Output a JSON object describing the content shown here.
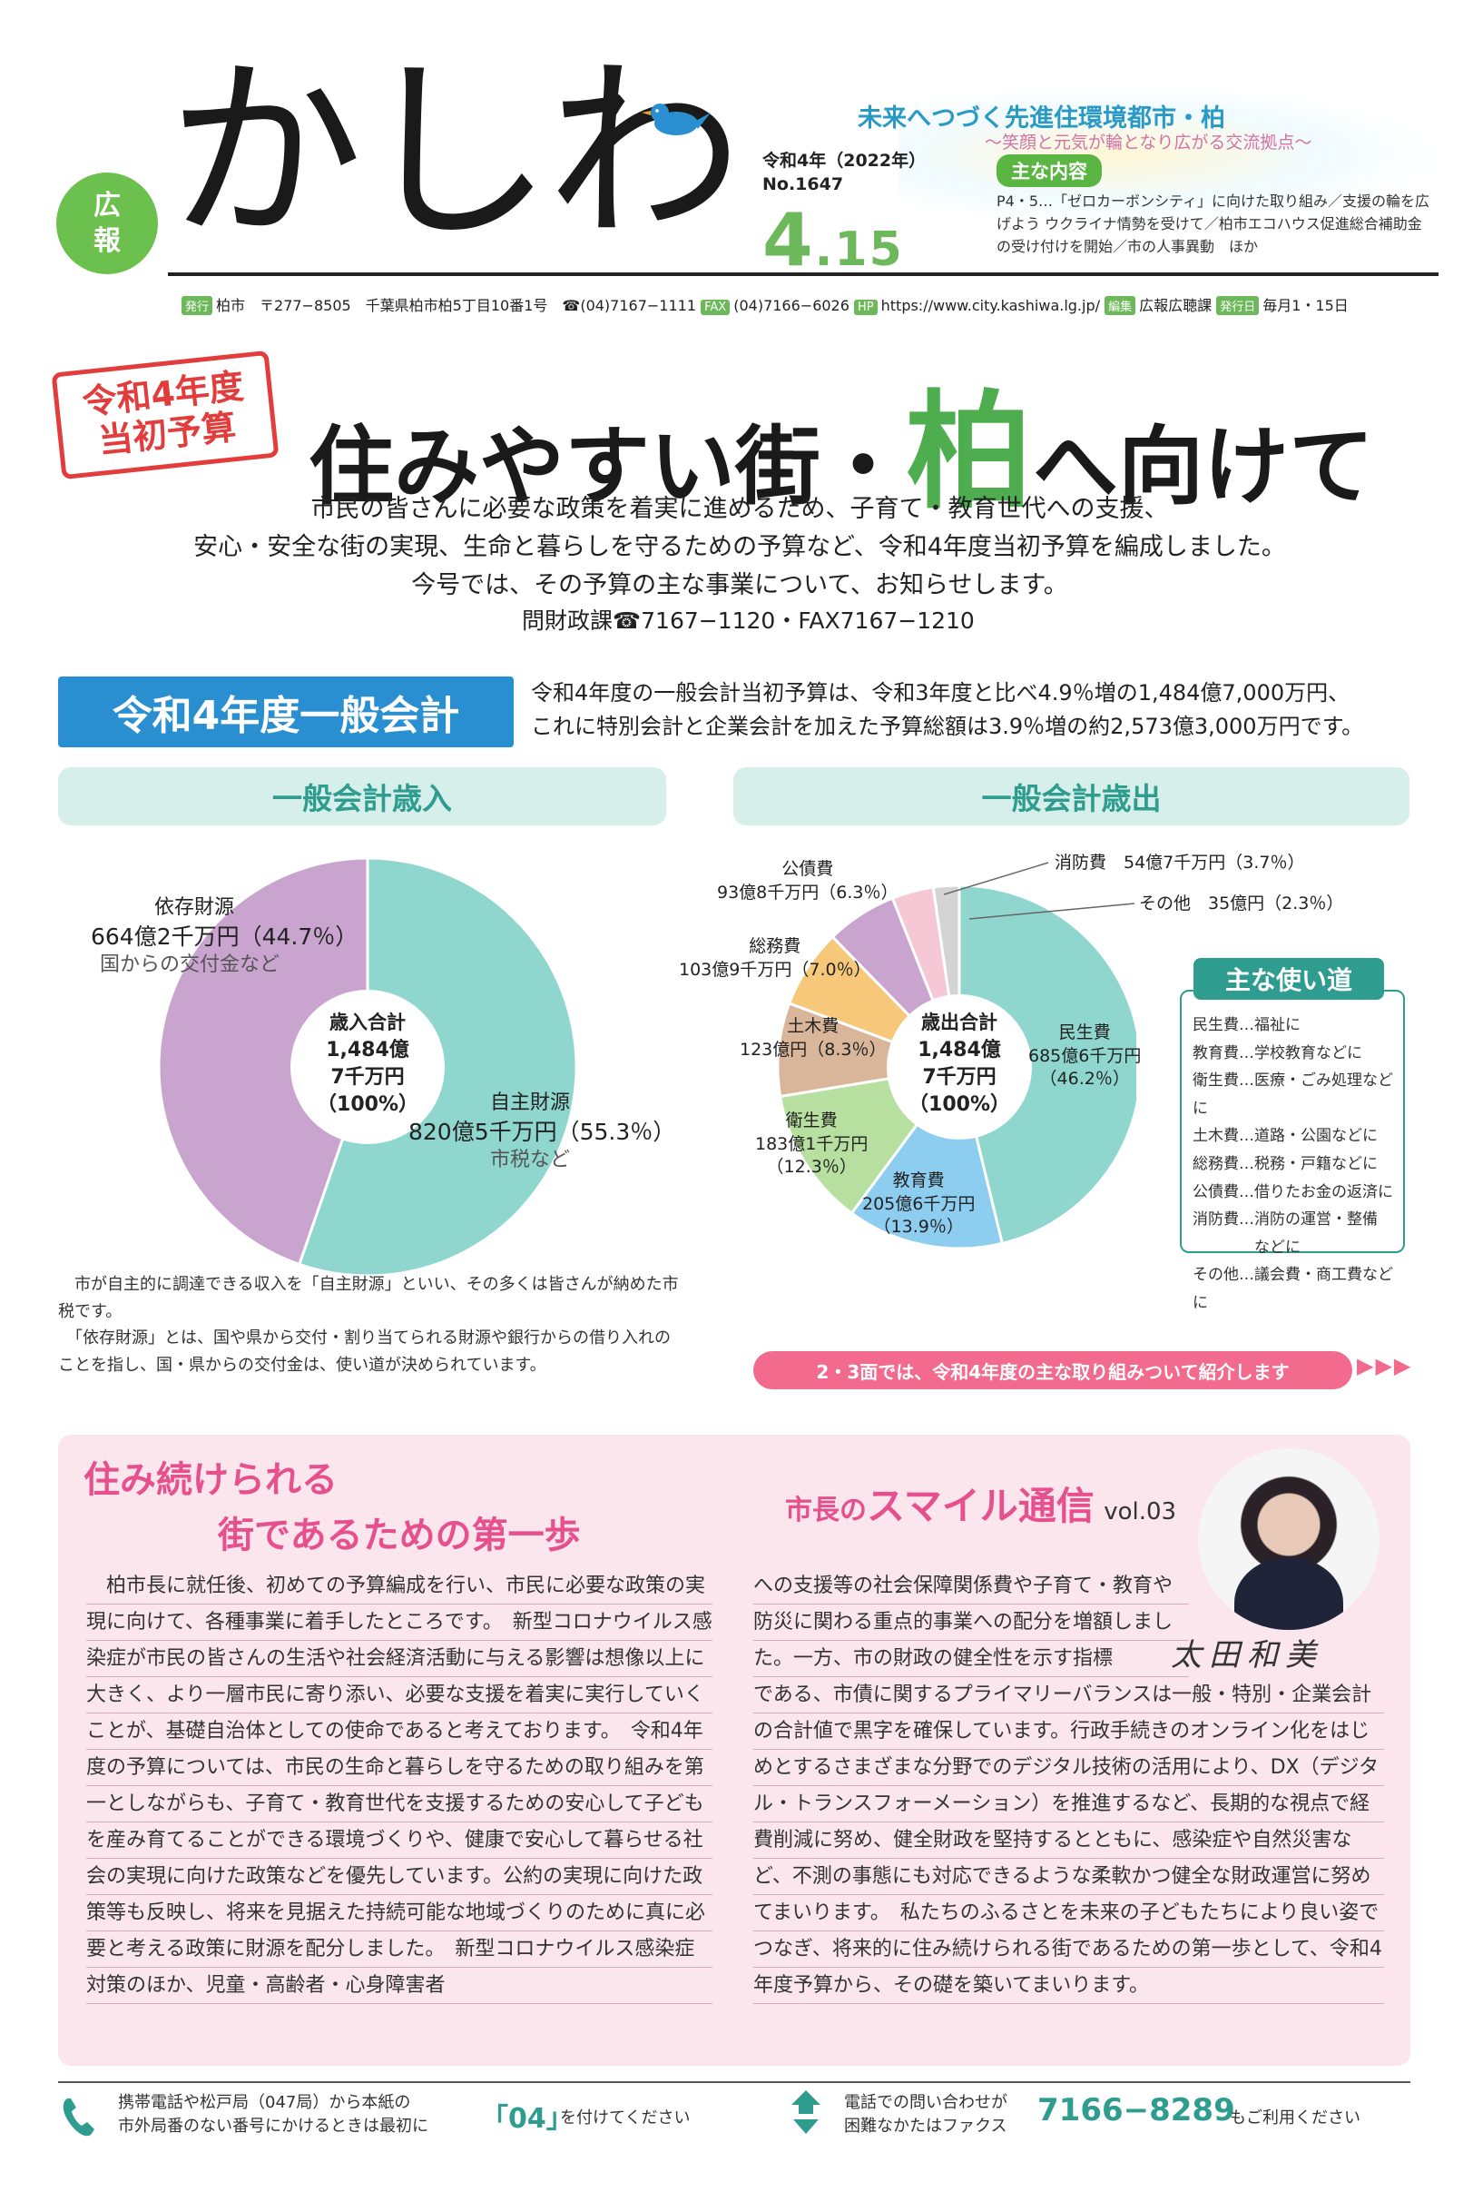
{
  "masthead": {
    "badge": [
      "広",
      "報"
    ],
    "logo": "かしわ",
    "era": "令和4年（2022年）",
    "issue": "No.1647",
    "date_month": "4",
    "date_day": ".15",
    "slogan": "未来へつづく先進住環境都市・柏",
    "subslogan": "〜笑顔と元気が輪となり広がる交流拠点〜",
    "contents_label": "主な内容",
    "contents": "P4・5…「ゼロカーボンシティ」に向けた取り組み／支援の輪を広げよう ウクライナ情勢を受けて／柏市エコハウス促進総合補助金の受け付けを開始／市の人事異動　ほか",
    "pub": {
      "publisher_tag": "発行",
      "publisher": "柏市　〒277−8505　千葉県柏市柏5丁目10番1号　☎(04)7167−1111",
      "fax_tag": "FAX",
      "fax": "(04)7166−6026",
      "hp_tag": "HP",
      "hp": "https://www.city.kashiwa.lg.jp/",
      "editor_tag": "編集",
      "editor": "広報広聴課",
      "date_tag": "発行日",
      "issued": "毎月1・15日"
    }
  },
  "headline": {
    "stamp": [
      "令和4年度",
      "当初予算"
    ],
    "pre": "住みやすい街・",
    "accent": "柏",
    "post": "へ向けて",
    "intro": [
      "市民の皆さんに必要な政策を着実に進めるため、子育て・教育世代への支援、",
      "安心・安全な街の実現、生命と暮らしを守るための予算など、令和4年度当初予算を編成しました。",
      "今号では、その予算の主な事業について、お知らせします。"
    ],
    "contact": "問財政課☎7167−1120・FAX7167−1210"
  },
  "general": {
    "title": "令和4年度一般会計",
    "text": [
      "令和4年度の一般会計当初予算は、令和3年度と比べ4.9％増の1,484億7,000万円、",
      "これに特別会計と企業会計を加えた予算総額は3.9％増の約2,573億3,000万円です。"
    ]
  },
  "chart_data": [
    {
      "type": "pie",
      "title": "一般会計歳入",
      "center": [
        "歳入合計",
        "1,484億",
        "7千万円",
        "（100%）"
      ],
      "slices": [
        {
          "label": "自主財源",
          "amount": "820億5千万円",
          "percent": 55.3,
          "note": "市税など",
          "color": "#8fd6cf"
        },
        {
          "label": "依存財源",
          "amount": "664億2千万円",
          "percent": 44.7,
          "note": "国からの交付金など",
          "color": "#c8a4cf"
        }
      ]
    },
    {
      "type": "pie",
      "title": "一般会計歳出",
      "center": [
        "歳出合計",
        "1,484億",
        "7千万円",
        "（100%）"
      ],
      "slices": [
        {
          "label": "民生費",
          "amount": "685億6千万円",
          "percent": 46.2,
          "color": "#8fd6cf"
        },
        {
          "label": "教育費",
          "amount": "205億6千万円",
          "percent": 13.9,
          "color": "#8ccdf0"
        },
        {
          "label": "衛生費",
          "amount": "183億1千万円",
          "percent": 12.3,
          "color": "#b6dfa0"
        },
        {
          "label": "土木費",
          "amount": "123億円",
          "percent": 8.3,
          "color": "#d9b69a"
        },
        {
          "label": "総務費",
          "amount": "103億9千万円",
          "percent": 7.0,
          "color": "#f7c77a"
        },
        {
          "label": "公債費",
          "amount": "93億8千万円",
          "percent": 6.3,
          "color": "#c8a4cf"
        },
        {
          "label": "消防費",
          "amount": "54億7千万円",
          "percent": 3.7,
          "color": "#f6c8d6"
        },
        {
          "label": "その他",
          "amount": "35億円",
          "percent": 2.3,
          "color": "#d4d4d4"
        }
      ]
    }
  ],
  "labels": {
    "rev_dep": [
      "依存財源",
      "664億2千万円（44.7％）",
      "国からの交付金など"
    ],
    "rev_own": [
      "自主財源",
      "820億5千万円（55.3％）",
      "市税など"
    ],
    "exp_min": [
      "民生費",
      "685億6千万円",
      "（46.2％）"
    ],
    "exp_edu": [
      "教育費",
      "205億6千万円",
      "（13.9％）"
    ],
    "exp_eis": [
      "衛生費",
      "183億1千万円",
      "（12.3％）"
    ],
    "exp_dob": [
      "土木費",
      "123億円（8.3％）"
    ],
    "exp_som": [
      "総務費",
      "103億9千万円（7.0％）"
    ],
    "exp_kou": [
      "公債費",
      "93億8千万円（6.3％）"
    ],
    "exp_sho": "消防費　54億7千万円（3.7％）",
    "exp_oth": "その他　35億円（2.3％）"
  },
  "uses": {
    "title": "主な使い道",
    "items": [
      "民生費…福祉に",
      "教育費…学校教育などに",
      "衛生費…医療・ごみ処理などに",
      "土木費…道路・公園などに",
      "総務費…税務・戸籍などに",
      "公債費…借りたお金の返済に",
      "消防費…消防の運営・整備",
      "　　　　などに",
      "その他…議会費・商工費などに"
    ]
  },
  "footnote": [
    "　市が自主的に調達できる収入を「自主財源」といい、その多くは皆さんが納めた市税です。",
    "　「依存財源」とは、国や県から交付・割り当てられる財源や銀行からの借り入れのことを指し、国・県からの交付金は、使い道が決められています。"
  ],
  "pinkbar": "2・3面では、令和4年度の主な取り組みついて紹介します",
  "arrows": "▶▶▶",
  "mayor": {
    "title1": "住み続けられる",
    "title2": "街であるための第一歩",
    "smile_pre": "市長の",
    "smile": "スマイル通信",
    "vol": "vol.03",
    "signature": "太田和美",
    "col1": "　柏市長に就任後、初めての予算編成を行い、市民に必要な政策の実現に向けて、各種事業に着手したところです。　新型コロナウイルス感染症が市民の皆さんの生活や社会経済活動に与える影響は想像以上に大きく、より一層市民に寄り添い、必要な支援を着実に実行していくことが、基礎自治体としての使命であると考えております。　令和4年度の予算については、市民の生命と暮らしを守るための取り組みを第一としながらも、子育て・教育世代を支援するための安心して子どもを産み育てることができる環境づくりや、健康で安心して暮らせる社会の実現に向けた政策などを優先しています。公約の実現に向けた政策等も反映し、将来を見据えた持続可能な地域づくりのために真に必要と考える政策に財源を配分しました。　新型コロナウイルス感染症対策のほか、児童・高齢者・心身障害者",
    "col2a": "への支援等の社会保障関係費や子育て・教育や防災に関わる重点的事業への配分を増額しました。一方、市の財政の健全性を示す指標",
    "col2b": "である、市債に関するプライマリーバランスは一般・特別・企業会計の合計値で黒字を確保しています。行政手続きのオンライン化をはじめとするさまざまな分野でのデジタル技術の活用により、DX（デジタル・トランスフォーメーション）を推進するなど、長期的な視点で経費削減に努め、健全財政を堅持するとともに、感染症や自然災害など、不測の事態にも対応できるような柔軟かつ健全な財政運営に努めてまいります。　私たちのふるさとを未来の子どもたちにより良い姿でつなぎ、将来的に住み続けられる街であるための第一歩として、令和4年度予算から、その礎を築いてまいります。"
  },
  "footer": {
    "line1a": "携帯電話や松戸局（047局）から本紙の",
    "line1b": "市外局番のない番号にかけるときは最初に",
    "code": "「04」",
    "code_after": "を付けてください",
    "line2a": "電話での問い合わせが",
    "line2b": "困難なかたはファクス",
    "fax": "7166−8289",
    "fax_after": "もご利用ください"
  }
}
